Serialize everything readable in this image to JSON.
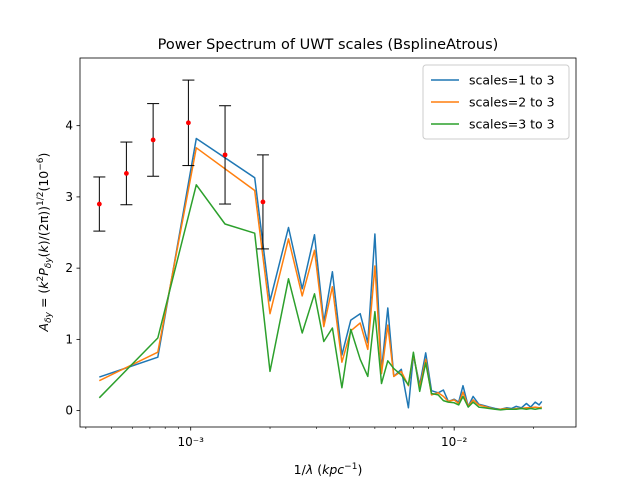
{
  "chart_data": {
    "type": "line",
    "title": "Power Spectrum of UWT scales (BsplineAtrous)",
    "xlabel": "1/λ (kpc⁻¹)",
    "ylabel": "A_δy = (k²P_δy(k)/(2π))^(1/2) (10⁻⁶)",
    "x_scale": "log",
    "xlim": [
      0.00038,
      0.029
    ],
    "ylim": [
      -0.23,
      4.95
    ],
    "y_ticks": [
      0,
      1,
      2,
      3,
      4
    ],
    "y_tick_labels": [
      "0",
      "1",
      "2",
      "3",
      "4"
    ],
    "x_major_ticks": [
      0.001,
      0.01
    ],
    "x_tick_labels": [
      "10⁻³",
      "10⁻²"
    ],
    "legend_position": "upper right",
    "grid": false,
    "series": [
      {
        "name": "scales=1 to 3",
        "color": "#1f77b4",
        "x": [
          0.00045,
          0.00075,
          0.00105,
          0.00175,
          0.002,
          0.00235,
          0.00265,
          0.00295,
          0.0032,
          0.00345,
          0.00375,
          0.00405,
          0.0044,
          0.0047,
          0.005,
          0.0053,
          0.0056,
          0.0059,
          0.0063,
          0.0067,
          0.007,
          0.0074,
          0.0078,
          0.0082,
          0.0087,
          0.0091,
          0.0095,
          0.01,
          0.0104,
          0.0108,
          0.0113,
          0.0118,
          0.0124,
          0.013,
          0.0136,
          0.0143,
          0.015,
          0.0158,
          0.0165,
          0.0172,
          0.018,
          0.0188,
          0.0195,
          0.0203,
          0.021,
          0.0215
        ],
        "y": [
          0.47,
          0.75,
          3.82,
          3.27,
          1.54,
          2.57,
          1.71,
          2.47,
          1.24,
          1.95,
          0.78,
          1.27,
          1.36,
          0.95,
          2.48,
          0.56,
          1.44,
          0.48,
          0.58,
          0.04,
          0.78,
          0.36,
          0.81,
          0.28,
          0.25,
          0.29,
          0.13,
          0.16,
          0.12,
          0.35,
          0.06,
          0.2,
          0.09,
          0.07,
          0.05,
          0.03,
          0.02,
          0.04,
          0.03,
          0.06,
          0.04,
          0.1,
          0.05,
          0.12,
          0.08,
          0.13
        ]
      },
      {
        "name": "scales=2 to 3",
        "color": "#ff7f0e",
        "x": [
          0.00045,
          0.00075,
          0.00105,
          0.00175,
          0.002,
          0.00235,
          0.00265,
          0.00295,
          0.0032,
          0.00345,
          0.00375,
          0.00405,
          0.0044,
          0.0047,
          0.005,
          0.0053,
          0.0056,
          0.0059,
          0.0063,
          0.0067,
          0.007,
          0.0074,
          0.0078,
          0.0082,
          0.0087,
          0.0091,
          0.0095,
          0.01,
          0.0104,
          0.0108,
          0.0113,
          0.0118,
          0.0124,
          0.013,
          0.0136,
          0.0143,
          0.015,
          0.0158,
          0.0165,
          0.0172,
          0.018,
          0.0188,
          0.0195,
          0.0203,
          0.021,
          0.0215
        ],
        "y": [
          0.42,
          0.82,
          3.69,
          3.09,
          1.36,
          2.41,
          1.61,
          2.25,
          1.18,
          1.74,
          0.68,
          1.12,
          1.23,
          0.86,
          2.03,
          0.52,
          1.2,
          0.48,
          0.55,
          0.35,
          0.79,
          0.32,
          0.72,
          0.22,
          0.25,
          0.2,
          0.13,
          0.15,
          0.1,
          0.26,
          0.06,
          0.15,
          0.08,
          0.06,
          0.04,
          0.02,
          0.02,
          0.03,
          0.02,
          0.03,
          0.03,
          0.04,
          0.04,
          0.05,
          0.04,
          0.05
        ]
      },
      {
        "name": "scales=3 to 3",
        "color": "#2ca02c",
        "x": [
          0.00045,
          0.00075,
          0.00105,
          0.00135,
          0.00175,
          0.002,
          0.00235,
          0.00265,
          0.00295,
          0.0032,
          0.00345,
          0.00375,
          0.00405,
          0.0044,
          0.0047,
          0.005,
          0.0053,
          0.0056,
          0.0059,
          0.0063,
          0.0067,
          0.007,
          0.0074,
          0.0078,
          0.0082,
          0.0087,
          0.0091,
          0.0095,
          0.01,
          0.0104,
          0.0108,
          0.0113,
          0.0118,
          0.0124,
          0.013,
          0.0136,
          0.0143,
          0.015,
          0.0158,
          0.0165,
          0.0172,
          0.018,
          0.0188,
          0.0195,
          0.0203,
          0.021,
          0.0215
        ],
        "y": [
          0.18,
          1.02,
          3.17,
          2.62,
          2.49,
          0.55,
          1.85,
          1.09,
          1.64,
          0.97,
          1.16,
          0.32,
          1.14,
          0.72,
          0.48,
          1.39,
          0.38,
          0.7,
          0.59,
          0.5,
          0.36,
          0.82,
          0.27,
          0.67,
          0.24,
          0.22,
          0.14,
          0.12,
          0.11,
          0.08,
          0.2,
          0.05,
          0.12,
          0.05,
          0.04,
          0.03,
          0.02,
          0.01,
          0.02,
          0.02,
          0.02,
          0.03,
          0.02,
          0.03,
          0.02,
          0.03,
          0.03
        ]
      }
    ],
    "errorbars": {
      "color": "#000000",
      "marker_color": "#ff0000",
      "x": [
        0.00045,
        0.00057,
        0.00072,
        0.00098,
        0.00135,
        0.00188
      ],
      "y": [
        2.9,
        3.33,
        3.8,
        4.04,
        3.59,
        2.93
      ],
      "yerr": [
        0.38,
        0.44,
        0.51,
        0.6,
        0.69,
        0.66
      ]
    }
  }
}
